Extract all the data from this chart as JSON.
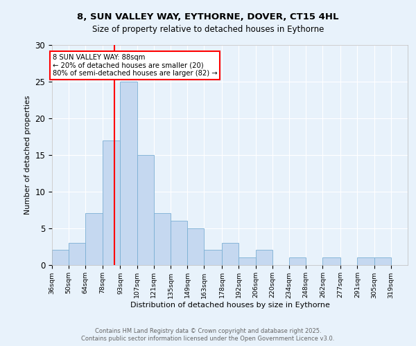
{
  "title1": "8, SUN VALLEY WAY, EYTHORNE, DOVER, CT15 4HL",
  "title2": "Size of property relative to detached houses in Eythorne",
  "xlabel": "Distribution of detached houses by size in Eythorne",
  "ylabel": "Number of detached properties",
  "bin_labels": [
    "36sqm",
    "50sqm",
    "64sqm",
    "78sqm",
    "93sqm",
    "107sqm",
    "121sqm",
    "135sqm",
    "149sqm",
    "163sqm",
    "178sqm",
    "192sqm",
    "206sqm",
    "220sqm",
    "234sqm",
    "248sqm",
    "262sqm",
    "277sqm",
    "291sqm",
    "305sqm",
    "319sqm"
  ],
  "bin_edges": [
    36,
    50,
    64,
    78,
    93,
    107,
    121,
    135,
    149,
    163,
    178,
    192,
    206,
    220,
    234,
    248,
    262,
    277,
    291,
    305,
    319
  ],
  "counts": [
    2,
    3,
    7,
    17,
    25,
    15,
    7,
    6,
    5,
    2,
    3,
    1,
    2,
    0,
    1,
    0,
    1,
    0,
    1,
    1
  ],
  "bar_color": "#c5d8f0",
  "bar_edge_color": "#7aafd4",
  "property_size": 88,
  "vline_color": "red",
  "annotation_text": "8 SUN VALLEY WAY: 88sqm\n← 20% of detached houses are smaller (20)\n80% of semi-detached houses are larger (82) →",
  "annotation_box_color": "white",
  "annotation_box_edgecolor": "red",
  "ylim": [
    0,
    30
  ],
  "yticks": [
    0,
    5,
    10,
    15,
    20,
    25,
    30
  ],
  "footer_text": "Contains HM Land Registry data © Crown copyright and database right 2025.\nContains public sector information licensed under the Open Government Licence v3.0.",
  "background_color": "#e8f2fb",
  "plot_bg_color": "#e8f2fb"
}
